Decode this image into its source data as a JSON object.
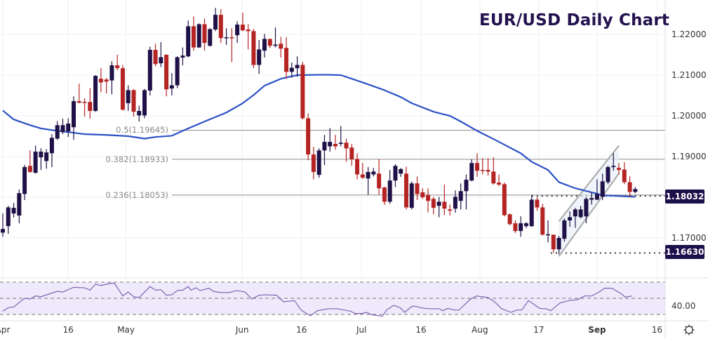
{
  "title": "EUR/USD Daily Chart",
  "fib_labels": [
    "0.5(1.19645)",
    "0.382(1.18933)",
    "0.236(1.18053)"
  ],
  "badges": [
    "1.18032",
    "1.16630"
  ],
  "rsi_axis_label": "40.00",
  "colors": {
    "bull": "#1f1147",
    "bear": "#b52323",
    "ma": "#2c52c6",
    "fib": "#8c8c8c",
    "channel": "#a8a8a8",
    "rsi": "#7d64b0",
    "rsi_band": "#efeafb"
  },
  "chart_data": {
    "type": "candlestick",
    "title": "EUR/USD Daily Chart",
    "ylim": [
      1.1632,
      1.2284
    ],
    "yticks": [
      "1.22000",
      "1.21000",
      "1.20000",
      "1.19000",
      "1.17000"
    ],
    "ytick_values": [
      1.22,
      1.21,
      1.2,
      1.19,
      1.17
    ],
    "xticks": [
      {
        "label": "Apr",
        "index": 0,
        "bold": false
      },
      {
        "label": "16",
        "index": 12,
        "bold": false
      },
      {
        "label": "May",
        "index": 22.6,
        "bold": false
      },
      {
        "label": "Jun",
        "index": 43.9,
        "bold": false
      },
      {
        "label": "16",
        "index": 54.8,
        "bold": false
      },
      {
        "label": "Jul",
        "index": 65.8,
        "bold": false
      },
      {
        "label": "16",
        "index": 76.7,
        "bold": false
      },
      {
        "label": "Aug",
        "index": 87.5,
        "bold": false
      },
      {
        "label": "17",
        "index": 98.3,
        "bold": false
      },
      {
        "label": "Sep",
        "index": 109,
        "bold": true
      },
      {
        "label": "16",
        "index": 120,
        "bold": false
      }
    ],
    "ohlc_order": [
      "open",
      "high",
      "low",
      "close"
    ],
    "ohlc": [
      [
        1.1713,
        1.176,
        1.1703,
        1.1722
      ],
      [
        1.1729,
        1.1779,
        1.171,
        1.1775
      ],
      [
        1.176,
        1.1786,
        1.175,
        1.1774
      ],
      [
        1.1755,
        1.1819,
        1.1736,
        1.181
      ],
      [
        1.1808,
        1.1879,
        1.1793,
        1.1874
      ],
      [
        1.1877,
        1.1915,
        1.186,
        1.1862
      ],
      [
        1.186,
        1.1927,
        1.1858,
        1.1912
      ],
      [
        1.1898,
        1.192,
        1.1867,
        1.1912
      ],
      [
        1.1889,
        1.1918,
        1.187,
        1.191
      ],
      [
        1.1908,
        1.1955,
        1.1874,
        1.1946
      ],
      [
        1.1944,
        1.1987,
        1.1941,
        1.1977
      ],
      [
        1.196,
        1.1993,
        1.1955,
        1.1977
      ],
      [
        1.1962,
        1.1994,
        1.1948,
        1.1981
      ],
      [
        1.1972,
        1.2048,
        1.1941,
        1.2036
      ],
      [
        1.2036,
        1.2079,
        1.2031,
        1.2032
      ],
      [
        1.2034,
        1.2043,
        1.1998,
        1.2032
      ],
      [
        1.2034,
        1.2068,
        1.1993,
        1.2012
      ],
      [
        1.2012,
        1.21,
        1.201,
        1.2098
      ],
      [
        1.2091,
        1.2117,
        1.2058,
        1.2082
      ],
      [
        1.2089,
        1.2093,
        1.2055,
        1.2084
      ],
      [
        1.2087,
        1.2134,
        1.2053,
        1.2124
      ],
      [
        1.2124,
        1.215,
        1.2112,
        1.2117
      ],
      [
        1.2117,
        1.2125,
        1.2013,
        1.2015
      ],
      [
        1.2031,
        1.2075,
        1.2012,
        1.2063
      ],
      [
        1.2063,
        1.2066,
        1.1998,
        1.201
      ],
      [
        1.2001,
        1.2025,
        1.1986,
        1.2012
      ],
      [
        1.2001,
        1.2066,
        1.1994,
        1.2063
      ],
      [
        1.2062,
        1.217,
        1.205,
        1.2162
      ],
      [
        1.2162,
        1.2177,
        1.2122,
        1.2127
      ],
      [
        1.2129,
        1.2181,
        1.212,
        1.2144
      ],
      [
        1.215,
        1.2151,
        1.2048,
        1.2065
      ],
      [
        1.2067,
        1.2105,
        1.205,
        1.2075
      ],
      [
        1.2075,
        1.2146,
        1.2068,
        1.2144
      ],
      [
        1.2143,
        1.2168,
        1.2124,
        1.2148
      ],
      [
        1.2146,
        1.2234,
        1.2144,
        1.222
      ],
      [
        1.222,
        1.2244,
        1.216,
        1.2168
      ],
      [
        1.2168,
        1.2227,
        1.2167,
        1.2225
      ],
      [
        1.2225,
        1.2239,
        1.216,
        1.2179
      ],
      [
        1.2172,
        1.2215,
        1.217,
        1.2213
      ],
      [
        1.2212,
        1.2265,
        1.2208,
        1.2248
      ],
      [
        1.2248,
        1.2262,
        1.2179,
        1.2191
      ],
      [
        1.2191,
        1.2215,
        1.2174,
        1.2193
      ],
      [
        1.2193,
        1.2215,
        1.2132,
        1.2191
      ],
      [
        1.2198,
        1.2232,
        1.2179,
        1.2224
      ],
      [
        1.2224,
        1.2253,
        1.2208,
        1.221
      ],
      [
        1.2212,
        1.2225,
        1.2163,
        1.2208
      ],
      [
        1.2208,
        1.2213,
        1.2117,
        1.2125
      ],
      [
        1.2125,
        1.2186,
        1.2103,
        1.2163
      ],
      [
        1.216,
        1.2201,
        1.2143,
        1.2189
      ],
      [
        1.2189,
        1.2189,
        1.2167,
        1.2172
      ],
      [
        1.2172,
        1.2217,
        1.2168,
        1.2175
      ],
      [
        1.2177,
        1.2194,
        1.2143,
        1.2165
      ],
      [
        1.2167,
        1.2193,
        1.2091,
        1.2108
      ],
      [
        1.2108,
        1.2131,
        1.2094,
        1.2118
      ],
      [
        1.2117,
        1.2146,
        1.2096,
        1.2125
      ],
      [
        1.2125,
        1.2132,
        1.1991,
        1.1994
      ],
      [
        1.1994,
        1.2006,
        1.1891,
        1.1905
      ],
      [
        1.1905,
        1.1924,
        1.1844,
        1.1862
      ],
      [
        1.1855,
        1.192,
        1.1848,
        1.1915
      ],
      [
        1.1915,
        1.1953,
        1.1879,
        1.1936
      ],
      [
        1.1925,
        1.197,
        1.1912,
        1.1936
      ],
      [
        1.1931,
        1.1953,
        1.1917,
        1.1925
      ],
      [
        1.1931,
        1.1975,
        1.1925,
        1.1934
      ],
      [
        1.1934,
        1.1944,
        1.1887,
        1.192
      ],
      [
        1.1922,
        1.1931,
        1.1877,
        1.1893
      ],
      [
        1.1894,
        1.1908,
        1.1844,
        1.1856
      ],
      [
        1.1856,
        1.1884,
        1.1845,
        1.1848
      ],
      [
        1.1846,
        1.1874,
        1.1806,
        1.1862
      ],
      [
        1.1856,
        1.1872,
        1.1851,
        1.1863
      ],
      [
        1.1858,
        1.1894,
        1.1806,
        1.1822
      ],
      [
        1.1824,
        1.1826,
        1.1781,
        1.1789
      ],
      [
        1.1789,
        1.1867,
        1.1784,
        1.1841
      ],
      [
        1.1841,
        1.1881,
        1.1825,
        1.1877
      ],
      [
        1.1858,
        1.1872,
        1.185,
        1.1869
      ],
      [
        1.1858,
        1.1875,
        1.177,
        1.1775
      ],
      [
        1.1774,
        1.1839,
        1.177,
        1.1834
      ],
      [
        1.1834,
        1.1851,
        1.1793,
        1.1808
      ],
      [
        1.1812,
        1.1822,
        1.1796,
        1.18
      ],
      [
        1.1806,
        1.1822,
        1.1763,
        1.1791
      ],
      [
        1.1796,
        1.1801,
        1.1758,
        1.1774
      ],
      [
        1.1779,
        1.1801,
        1.1751,
        1.1789
      ],
      [
        1.1789,
        1.1831,
        1.1756,
        1.1772
      ],
      [
        1.177,
        1.1782,
        1.1755,
        1.1767
      ],
      [
        1.1772,
        1.1817,
        1.1762,
        1.1801
      ],
      [
        1.1791,
        1.1834,
        1.177,
        1.1815
      ],
      [
        1.1815,
        1.1856,
        1.177,
        1.1843
      ],
      [
        1.1841,
        1.1893,
        1.1839,
        1.1884
      ],
      [
        1.1884,
        1.1908,
        1.185,
        1.1865
      ],
      [
        1.1867,
        1.1896,
        1.1856,
        1.1865
      ],
      [
        1.1867,
        1.1896,
        1.1853,
        1.1863
      ],
      [
        1.1863,
        1.1898,
        1.1831,
        1.1834
      ],
      [
        1.1836,
        1.1856,
        1.1827,
        1.1831
      ],
      [
        1.1832,
        1.1836,
        1.1753,
        1.1756
      ],
      [
        1.1758,
        1.176,
        1.1731,
        1.1734
      ],
      [
        1.1736,
        1.1743,
        1.1712,
        1.1717
      ],
      [
        1.1717,
        1.1753,
        1.1703,
        1.1736
      ],
      [
        1.1729,
        1.1739,
        1.1724,
        1.1736
      ],
      [
        1.1729,
        1.1805,
        1.1727,
        1.1794
      ],
      [
        1.1794,
        1.18,
        1.1767,
        1.1775
      ],
      [
        1.1775,
        1.1784,
        1.1706,
        1.1708
      ],
      [
        1.1708,
        1.1743,
        1.1689,
        1.1709
      ],
      [
        1.1708,
        1.1708,
        1.1663,
        1.1672
      ],
      [
        1.1672,
        1.1705,
        1.166,
        1.17
      ],
      [
        1.1698,
        1.1748,
        1.1691,
        1.1743
      ],
      [
        1.1743,
        1.1765,
        1.1727,
        1.1751
      ],
      [
        1.1753,
        1.1774,
        1.1725,
        1.177
      ],
      [
        1.1751,
        1.1779,
        1.1748,
        1.177
      ],
      [
        1.1753,
        1.18,
        1.1736,
        1.1796
      ],
      [
        1.1794,
        1.1812,
        1.1782,
        1.1798
      ],
      [
        1.1794,
        1.1844,
        1.1793,
        1.1808
      ],
      [
        1.1801,
        1.1858,
        1.1793,
        1.1839
      ],
      [
        1.1837,
        1.1877,
        1.1832,
        1.1874
      ],
      [
        1.1874,
        1.1908,
        1.1865,
        1.1877
      ],
      [
        1.1872,
        1.1884,
        1.1856,
        1.1867
      ],
      [
        1.1868,
        1.1886,
        1.1832,
        1.1837
      ],
      [
        1.1837,
        1.1851,
        1.1801,
        1.1813
      ],
      [
        1.1813,
        1.1825,
        1.181,
        1.182
      ]
    ],
    "moving_average": [
      [
        0,
        1.2013
      ],
      [
        2,
        1.1991
      ],
      [
        5,
        1.1977
      ],
      [
        7,
        1.1969
      ],
      [
        10,
        1.1963
      ],
      [
        12,
        1.196
      ],
      [
        15,
        1.1955
      ],
      [
        19,
        1.1953
      ],
      [
        23,
        1.195
      ],
      [
        26,
        1.1944
      ],
      [
        28,
        1.1948
      ],
      [
        31,
        1.1951
      ],
      [
        34,
        1.1969
      ],
      [
        37,
        1.1986
      ],
      [
        41,
        1.2008
      ],
      [
        44,
        1.2031
      ],
      [
        46,
        1.2051
      ],
      [
        48,
        1.2074
      ],
      [
        51,
        1.2091
      ],
      [
        54,
        1.21
      ],
      [
        59,
        1.2101
      ],
      [
        62,
        1.21
      ],
      [
        64,
        1.2091
      ],
      [
        66,
        1.2082
      ],
      [
        70,
        1.2063
      ],
      [
        73,
        1.2046
      ],
      [
        75,
        1.2031
      ],
      [
        79,
        1.201
      ],
      [
        82,
        1.2
      ],
      [
        84,
        1.1986
      ],
      [
        87,
        1.1963
      ],
      [
        90,
        1.1943
      ],
      [
        92,
        1.1929
      ],
      [
        95,
        1.1908
      ],
      [
        97,
        1.1887
      ],
      [
        100,
        1.1867
      ],
      [
        102,
        1.1837
      ],
      [
        105,
        1.1822
      ],
      [
        108,
        1.1812
      ],
      [
        110,
        1.1805
      ],
      [
        113,
        1.1803
      ],
      [
        116,
        1.1801
      ]
    ],
    "fib_levels": [
      {
        "ratio": 0.5,
        "price": 1.19645,
        "from_index": 31
      },
      {
        "ratio": 0.382,
        "price": 1.18933,
        "from_index": 31
      },
      {
        "ratio": 0.236,
        "price": 1.18053,
        "from_index": 31
      }
    ],
    "horizontal_levels": [
      {
        "price": 1.18032,
        "from_index": 97
      },
      {
        "price": 1.1663,
        "from_index": 100.5
      }
    ],
    "channel": {
      "upper": [
        [
          102,
          1.1741
        ],
        [
          113,
          1.1927
        ]
      ],
      "lower": [
        [
          102,
          1.1655
        ],
        [
          113,
          1.1858
        ]
      ]
    },
    "rsi": {
      "levels": [
        70,
        50,
        30
      ],
      "axis_tick": 40,
      "points": [
        [
          0,
          34
        ],
        [
          1,
          38.4
        ],
        [
          2,
          39.3
        ],
        [
          4,
          50
        ],
        [
          5,
          49.1
        ],
        [
          6,
          52.9
        ],
        [
          7,
          52
        ],
        [
          10,
          58.7
        ],
        [
          11,
          57.8
        ],
        [
          13,
          63.6
        ],
        [
          15,
          63
        ],
        [
          16,
          60.1
        ],
        [
          17,
          67.4
        ],
        [
          18,
          65.9
        ],
        [
          20,
          68.8
        ],
        [
          20.5,
          68.3
        ],
        [
          22,
          52.9
        ],
        [
          23,
          57.8
        ],
        [
          24,
          52
        ],
        [
          25,
          50.9
        ],
        [
          27,
          64.5
        ],
        [
          28,
          60.1
        ],
        [
          29,
          60.7
        ],
        [
          30,
          53.8
        ],
        [
          31,
          54.3
        ],
        [
          32,
          59.6
        ],
        [
          33,
          60.1
        ],
        [
          34,
          64.5
        ],
        [
          34.5,
          60.1
        ],
        [
          35.4,
          63
        ],
        [
          36.2,
          59.6
        ],
        [
          37.8,
          62.5
        ],
        [
          38.6,
          58.7
        ],
        [
          39.9,
          57.2
        ],
        [
          41.6,
          57.2
        ],
        [
          42.8,
          59.6
        ],
        [
          44.4,
          57.8
        ],
        [
          45.7,
          49.1
        ],
        [
          47,
          53.8
        ],
        [
          48.1,
          54.3
        ],
        [
          50.2,
          53.8
        ],
        [
          51.5,
          45.7
        ],
        [
          53.5,
          47.1
        ],
        [
          54.7,
          35.5
        ],
        [
          56.4,
          28.3
        ],
        [
          57.7,
          34.6
        ],
        [
          59.7,
          37
        ],
        [
          61.4,
          37
        ],
        [
          63.8,
          34
        ],
        [
          64.6,
          31.2
        ],
        [
          65.9,
          31.2
        ],
        [
          66.7,
          32.6
        ],
        [
          67.6,
          29.7
        ],
        [
          69.6,
          27.7
        ],
        [
          70.4,
          35.5
        ],
        [
          71.7,
          41.3
        ],
        [
          72.9,
          38.4
        ],
        [
          73.7,
          32.6
        ],
        [
          75,
          39.9
        ],
        [
          75.4,
          40.4
        ],
        [
          76.6,
          38.4
        ],
        [
          77.5,
          37.5
        ],
        [
          78.6,
          37
        ],
        [
          80,
          37
        ],
        [
          80.7,
          34.6
        ],
        [
          81.6,
          37.5
        ],
        [
          82.8,
          35.5
        ],
        [
          83.7,
          35.5
        ],
        [
          84.8,
          42.8
        ],
        [
          85.7,
          48.6
        ],
        [
          86.9,
          52.9
        ],
        [
          89,
          50.9
        ],
        [
          90.2,
          45.7
        ],
        [
          91.5,
          37
        ],
        [
          93.2,
          32.6
        ],
        [
          94.3,
          35.5
        ],
        [
          95.2,
          35.5
        ],
        [
          96.4,
          47.1
        ],
        [
          98.5,
          37.5
        ],
        [
          99.7,
          37
        ],
        [
          100.5,
          34.6
        ],
        [
          102.2,
          44.2
        ],
        [
          103.8,
          47.1
        ],
        [
          105.5,
          48.6
        ],
        [
          106.7,
          52.9
        ],
        [
          108,
          52.9
        ],
        [
          109.2,
          57.2
        ],
        [
          110.4,
          62.5
        ],
        [
          111.7,
          62.5
        ],
        [
          113.4,
          55.8
        ],
        [
          114.2,
          51.4
        ],
        [
          115.4,
          52.9
        ]
      ]
    }
  }
}
